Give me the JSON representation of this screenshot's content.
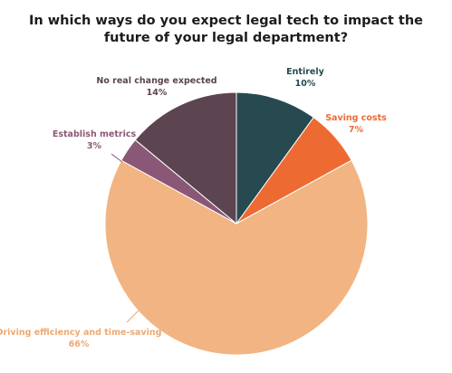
{
  "chart_data": {
    "type": "pie",
    "title": "In which ways do you expect legal tech to impact the future of your legal department?",
    "slices": [
      {
        "label": "Entirely",
        "value": 10,
        "value_label": "10%",
        "color": "#264a4f"
      },
      {
        "label": "Saving costs",
        "value": 7,
        "value_label": "7%",
        "color": "#ee6a33"
      },
      {
        "label": "Driving efficiency and time-saving",
        "value": 66,
        "value_label": "66%",
        "color": "#f1b482"
      },
      {
        "label": "Establish metrics",
        "value": 3,
        "value_label": "3%",
        "color": "#8a5876"
      },
      {
        "label": "No real change expected",
        "value": 14,
        "value_label": "14%",
        "color": "#5c4550"
      }
    ],
    "start_angle": "12 o'clock",
    "direction": "clockwise",
    "legend": "none"
  }
}
